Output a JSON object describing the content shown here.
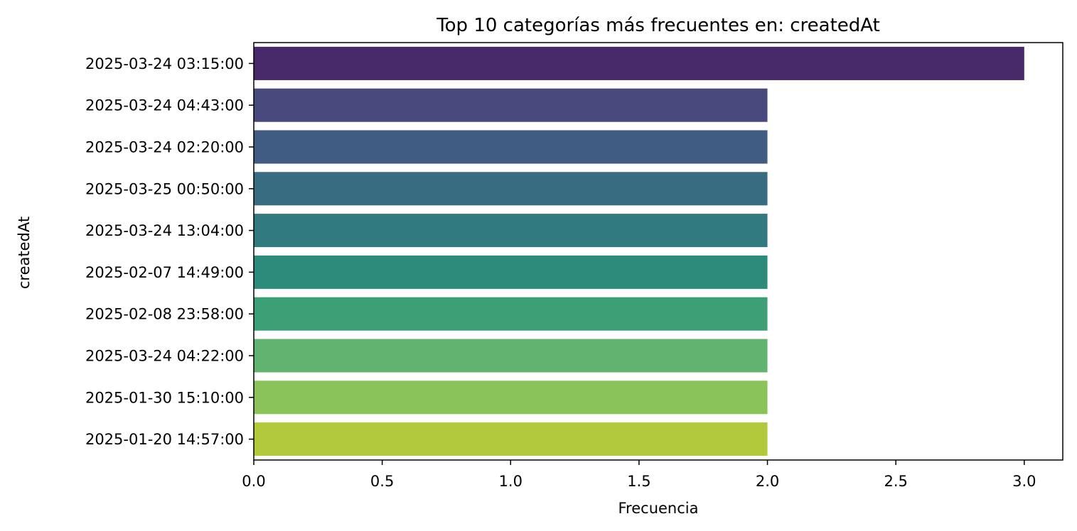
{
  "chart_data": {
    "type": "bar",
    "orientation": "horizontal",
    "title": "Top 10 categorías más frecuentes en: createdAt",
    "xlabel": "Frecuencia",
    "ylabel": "createdAt",
    "xlim": [
      0,
      3.15
    ],
    "xticks": [
      0.0,
      0.5,
      1.0,
      1.5,
      2.0,
      2.5,
      3.0
    ],
    "xtick_labels": [
      "0.0",
      "0.5",
      "1.0",
      "1.5",
      "2.0",
      "2.5",
      "3.0"
    ],
    "grid": false,
    "categories": [
      "2025-03-24 03:15:00",
      "2025-03-24 04:43:00",
      "2025-03-24 02:20:00",
      "2025-03-25 00:50:00",
      "2025-03-24 13:04:00",
      "2025-02-07 14:49:00",
      "2025-02-08 23:58:00",
      "2025-03-24 04:22:00",
      "2025-01-30 15:10:00",
      "2025-01-20 14:57:00"
    ],
    "values": [
      3,
      2,
      2,
      2,
      2,
      2,
      2,
      2,
      2,
      2
    ],
    "colors": [
      "#482a6a",
      "#484a7d",
      "#415c83",
      "#386c81",
      "#317b80",
      "#2d8b7b",
      "#3c9f75",
      "#61b36f",
      "#89c35a",
      "#b1c93b"
    ]
  }
}
